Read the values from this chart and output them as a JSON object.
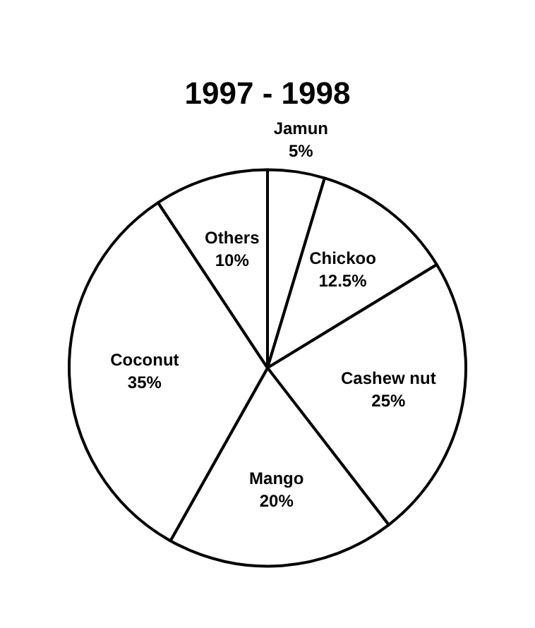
{
  "chart_data": {
    "type": "pie",
    "title": "1997 - 1998",
    "categories": [
      "Jamun",
      "Chickoo",
      "Cashew nut",
      "Mango",
      "Coconut",
      "Others"
    ],
    "values": [
      5,
      12.5,
      25,
      20,
      35,
      10
    ],
    "value_labels": [
      "5%",
      "12.5%",
      "25%",
      "20%",
      "35%",
      "10%"
    ],
    "colors": [
      "#ffffff",
      "#ffffff",
      "#ffffff",
      "#ffffff",
      "#ffffff",
      "#ffffff"
    ],
    "legend": false
  }
}
